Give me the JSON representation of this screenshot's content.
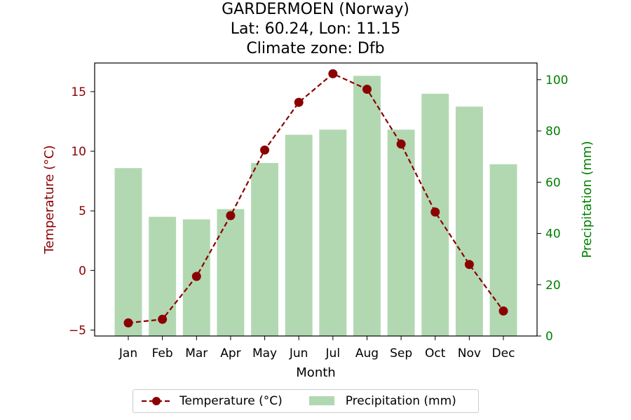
{
  "chart_data": {
    "type": "bar+line",
    "title_lines": [
      "GARDERMOEN (Norway)",
      "Lat: 60.24, Lon: 11.15",
      "Climate zone: Dfb"
    ],
    "xlabel": "Month",
    "categories": [
      "Jan",
      "Feb",
      "Mar",
      "Apr",
      "May",
      "Jun",
      "Jul",
      "Aug",
      "Sep",
      "Oct",
      "Nov",
      "Dec"
    ],
    "series": [
      {
        "name": "Temperature (°C)",
        "type": "line",
        "axis": "left",
        "color": "#8b0000",
        "style": "dashed-with-markers",
        "values": [
          -4.4,
          -4.1,
          -0.5,
          4.6,
          10.1,
          14.1,
          16.5,
          15.2,
          10.6,
          4.9,
          0.5,
          -3.4
        ]
      },
      {
        "name": "Precipitation (mm)",
        "type": "bar",
        "axis": "right",
        "color": "#b2d8b2",
        "values": [
          65.5,
          46.5,
          45.5,
          49.5,
          67.5,
          78.5,
          80.5,
          101.5,
          80.5,
          94.5,
          89.5,
          67
        ]
      }
    ],
    "y_left": {
      "label": "Temperature (°C)",
      "color": "#8b0000",
      "ticks": [
        -5,
        0,
        5,
        10,
        15
      ],
      "tick_labels": [
        "−5",
        "0",
        "5",
        "10",
        "15"
      ],
      "range": [
        -5.5,
        17.4
      ]
    },
    "y_right": {
      "label": "Precipitation (mm)",
      "color": "#008000",
      "ticks": [
        0,
        20,
        40,
        60,
        80,
        100
      ],
      "tick_labels": [
        "0",
        "20",
        "40",
        "60",
        "80",
        "100"
      ],
      "range": [
        0,
        106.5
      ]
    },
    "grid": false,
    "legend_position": "bottom-center"
  }
}
